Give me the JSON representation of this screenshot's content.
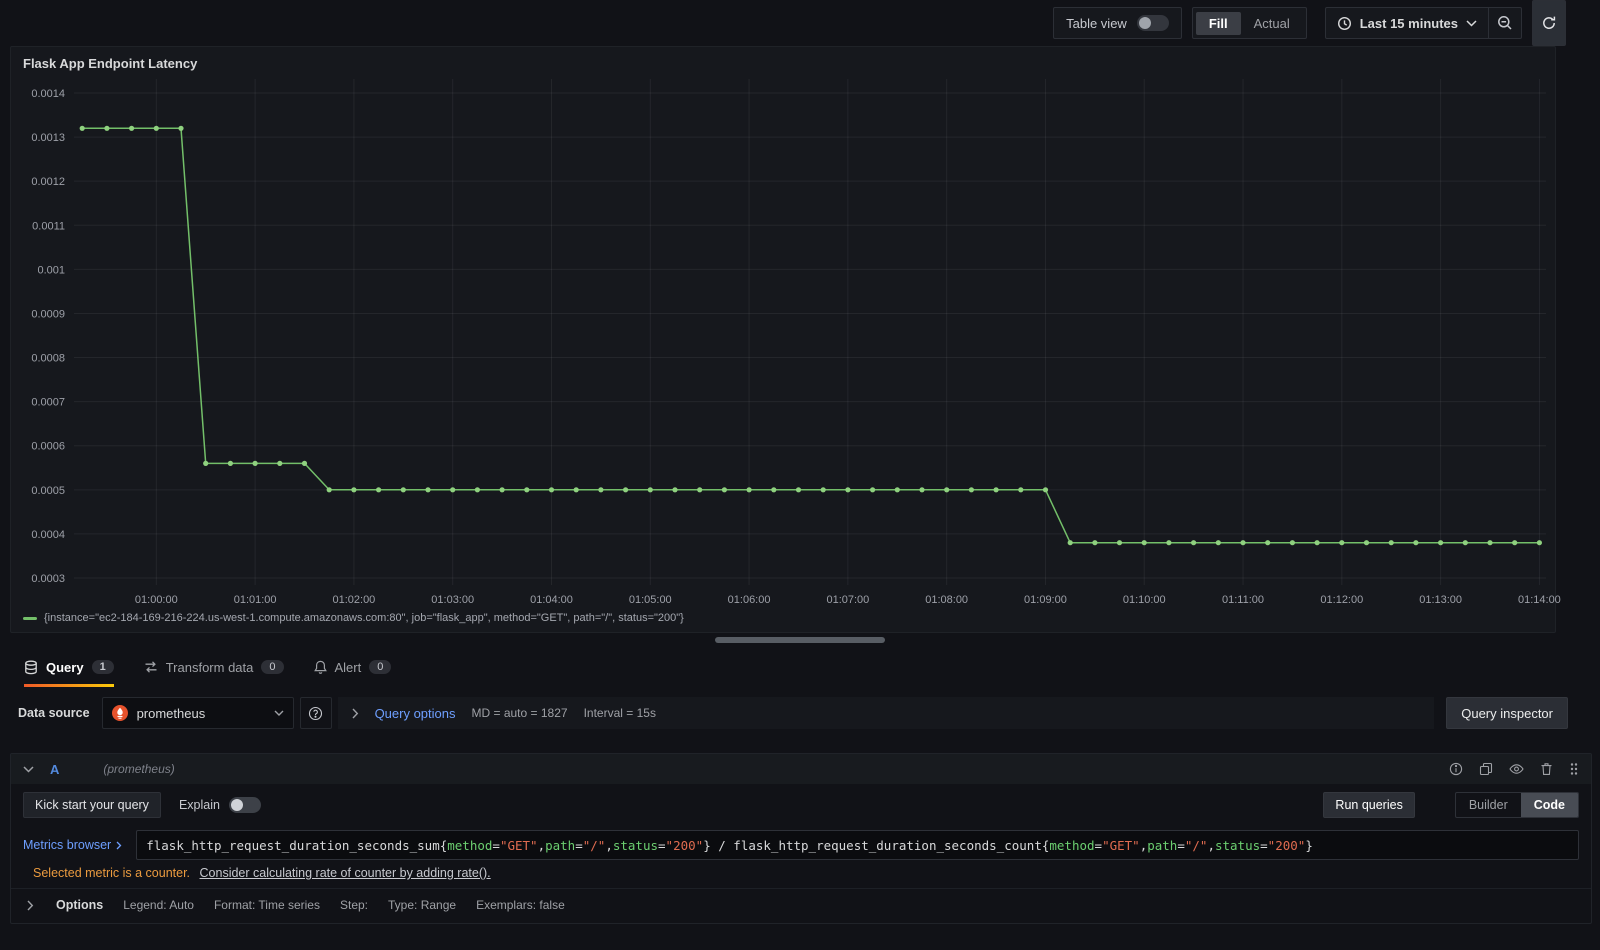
{
  "toolbar": {
    "table_view_label": "Table view",
    "table_view_on": false,
    "fill_label": "Fill",
    "actual_label": "Actual",
    "fill_selected": true,
    "time_range_label": "Last 15 minutes"
  },
  "icons": {
    "table_view_toggle": "toggle-off",
    "time_picker": "clock-icon",
    "time_picker_caret": "chevron-down-icon",
    "zoom_out": "magnifier-minus-icon",
    "refresh": "refresh-icon",
    "query_tab": "database-icon",
    "transform_tab": "transform-arrows-icon",
    "alert_tab": "bell-icon",
    "datasource": "prometheus-flame-icon",
    "datasource_caret": "chevron-down-icon",
    "datasource_help": "question-circle-icon",
    "query_row": [
      "info-circle-icon",
      "copy-icon",
      "eye-icon",
      "trash-icon",
      "grip-dots-icon"
    ]
  },
  "panel": {
    "title": "Flask App Endpoint Latency",
    "legend": "{instance=\"ec2-184-169-216-224.us-west-1.compute.amazonaws.com:80\", job=\"flask_app\", method=\"GET\", path=\"/\", status=\"200\"}"
  },
  "chart_data": {
    "type": "line",
    "title": "Flask App Endpoint Latency",
    "grid": true,
    "legend_position": "bottom",
    "x_range": [
      "00:59:10",
      "01:14:04"
    ],
    "ylim": [
      0.0003,
      0.0014
    ],
    "y_ticks": [
      0.0014,
      0.0013,
      0.0012,
      0.0011,
      0.001,
      0.0009,
      0.0008,
      0.0007,
      0.0006,
      0.0005,
      0.0004,
      0.0003
    ],
    "y_tick_labels": [
      "0.0014",
      "0.0013",
      "0.0012",
      "0.0011",
      "0.001",
      "0.0009",
      "0.0008",
      "0.0007",
      "0.0006",
      "0.0005",
      "0.0004",
      "0.0003"
    ],
    "x_ticks": [
      "01:00:00",
      "01:01:00",
      "01:02:00",
      "01:03:00",
      "01:04:00",
      "01:05:00",
      "01:06:00",
      "01:07:00",
      "01:08:00",
      "01:09:00",
      "01:10:00",
      "01:11:00",
      "01:12:00",
      "01:13:00",
      "01:14:00"
    ],
    "series": [
      {
        "name": "{instance=\"ec2-184-169-216-224.us-west-1.compute.amazonaws.com:80\", job=\"flask_app\", method=\"GET\", path=\"/\", status=\"200\"}",
        "color": "#73bf69",
        "point_color": "#8fd17f",
        "points": [
          [
            "00:59:15",
            0.00132
          ],
          [
            "00:59:30",
            0.00132
          ],
          [
            "00:59:45",
            0.00132
          ],
          [
            "01:00:00",
            0.00132
          ],
          [
            "01:00:15",
            0.00132
          ],
          [
            "01:00:30",
            0.00056
          ],
          [
            "01:00:45",
            0.00056
          ],
          [
            "01:01:00",
            0.00056
          ],
          [
            "01:01:15",
            0.00056
          ],
          [
            "01:01:30",
            0.00056
          ],
          [
            "01:01:45",
            0.0005
          ],
          [
            "01:02:00",
            0.0005
          ],
          [
            "01:02:15",
            0.0005
          ],
          [
            "01:02:30",
            0.0005
          ],
          [
            "01:02:45",
            0.0005
          ],
          [
            "01:03:00",
            0.0005
          ],
          [
            "01:03:15",
            0.0005
          ],
          [
            "01:03:30",
            0.0005
          ],
          [
            "01:03:45",
            0.0005
          ],
          [
            "01:04:00",
            0.0005
          ],
          [
            "01:04:15",
            0.0005
          ],
          [
            "01:04:30",
            0.0005
          ],
          [
            "01:04:45",
            0.0005
          ],
          [
            "01:05:00",
            0.0005
          ],
          [
            "01:05:15",
            0.0005
          ],
          [
            "01:05:30",
            0.0005
          ],
          [
            "01:05:45",
            0.0005
          ],
          [
            "01:06:00",
            0.0005
          ],
          [
            "01:06:15",
            0.0005
          ],
          [
            "01:06:30",
            0.0005
          ],
          [
            "01:06:45",
            0.0005
          ],
          [
            "01:07:00",
            0.0005
          ],
          [
            "01:07:15",
            0.0005
          ],
          [
            "01:07:30",
            0.0005
          ],
          [
            "01:07:45",
            0.0005
          ],
          [
            "01:08:00",
            0.0005
          ],
          [
            "01:08:15",
            0.0005
          ],
          [
            "01:08:30",
            0.0005
          ],
          [
            "01:08:45",
            0.0005
          ],
          [
            "01:09:00",
            0.0005
          ],
          [
            "01:09:15",
            0.00038
          ],
          [
            "01:09:30",
            0.00038
          ],
          [
            "01:09:45",
            0.00038
          ],
          [
            "01:10:00",
            0.00038
          ],
          [
            "01:10:15",
            0.00038
          ],
          [
            "01:10:30",
            0.00038
          ],
          [
            "01:10:45",
            0.00038
          ],
          [
            "01:11:00",
            0.00038
          ],
          [
            "01:11:15",
            0.00038
          ],
          [
            "01:11:30",
            0.00038
          ],
          [
            "01:11:45",
            0.00038
          ],
          [
            "01:12:00",
            0.00038
          ],
          [
            "01:12:15",
            0.00038
          ],
          [
            "01:12:30",
            0.00038
          ],
          [
            "01:12:45",
            0.00038
          ],
          [
            "01:13:00",
            0.00038
          ],
          [
            "01:13:15",
            0.00038
          ],
          [
            "01:13:30",
            0.00038
          ],
          [
            "01:13:45",
            0.00038
          ],
          [
            "01:14:00",
            0.00038
          ]
        ]
      }
    ]
  },
  "tabs": [
    {
      "label": "Query",
      "count": "1",
      "active": true
    },
    {
      "label": "Transform data",
      "count": "0",
      "active": false
    },
    {
      "label": "Alert",
      "count": "0",
      "active": false
    }
  ],
  "datasource_row": {
    "label": "Data source",
    "value": "prometheus",
    "query_options_label": "Query options",
    "md_text": "MD = auto = 1827",
    "interval_text": "Interval = 15s",
    "query_inspector_label": "Query inspector"
  },
  "query_row": {
    "ref_id": "A",
    "datasource_hint": "(prometheus)"
  },
  "query_editor": {
    "kick_start_label": "Kick start your query",
    "explain_label": "Explain",
    "explain_on": false,
    "run_queries_label": "Run queries",
    "builder_label": "Builder",
    "code_label": "Code",
    "mode_selected": "Code",
    "metrics_browser_label": "Metrics browser",
    "expr": "flask_http_request_duration_seconds_sum{method=\"GET\",path=\"/\",status=\"200\"} / flask_http_request_duration_seconds_count{method=\"GET\",path=\"/\",status=\"200\"}",
    "expr_segments": [
      {
        "t": "flask_http_request_duration_seconds_sum{",
        "c": "plain"
      },
      {
        "t": "method",
        "c": "label"
      },
      {
        "t": "=",
        "c": "plain"
      },
      {
        "t": "\"GET\"",
        "c": "string"
      },
      {
        "t": ",",
        "c": "plain"
      },
      {
        "t": "path",
        "c": "label"
      },
      {
        "t": "=",
        "c": "plain"
      },
      {
        "t": "\"/\"",
        "c": "string"
      },
      {
        "t": ",",
        "c": "plain"
      },
      {
        "t": "status",
        "c": "label"
      },
      {
        "t": "=",
        "c": "plain"
      },
      {
        "t": "\"200\"",
        "c": "string"
      },
      {
        "t": "} / flask_http_request_duration_seconds_count{",
        "c": "plain"
      },
      {
        "t": "method",
        "c": "label"
      },
      {
        "t": "=",
        "c": "plain"
      },
      {
        "t": "\"GET\"",
        "c": "string"
      },
      {
        "t": ",",
        "c": "plain"
      },
      {
        "t": "path",
        "c": "label"
      },
      {
        "t": "=",
        "c": "plain"
      },
      {
        "t": "\"/\"",
        "c": "string"
      },
      {
        "t": ",",
        "c": "plain"
      },
      {
        "t": "status",
        "c": "label"
      },
      {
        "t": "=",
        "c": "plain"
      },
      {
        "t": "\"200\"",
        "c": "string"
      },
      {
        "t": "}",
        "c": "plain"
      }
    ],
    "warning_text": "Selected metric is a counter.",
    "warning_link": "Consider calculating rate of counter by adding rate().",
    "options_label": "Options",
    "options_summary": [
      "Legend: Auto",
      "Format: Time series",
      "Step:",
      "Type: Range",
      "Exemplars: false"
    ]
  },
  "colors": {
    "page_bg": "#111217",
    "panel_bg": "#16181d",
    "series_green": "#73bf69",
    "accent_blue": "#6e9fff",
    "active_tab_orange": "#ff780a",
    "warning_orange": "#eb9b3f",
    "prometheus_orange": "#e6522c"
  }
}
